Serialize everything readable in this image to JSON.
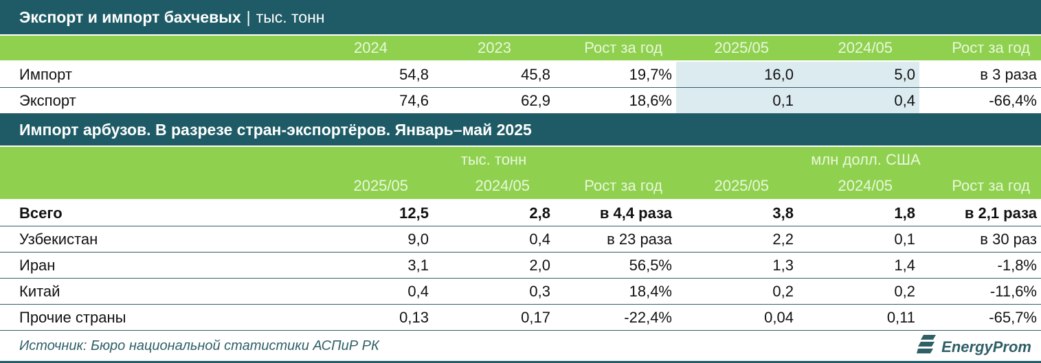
{
  "section1": {
    "title_bold": "Экспорт и импорт бахчевых",
    "title_sep": "|",
    "title_unit": "тыс. тонн",
    "headers": [
      "2024",
      "2023",
      "Рост за год",
      "2025/05",
      "2024/05",
      "Рост за год"
    ],
    "rows": [
      {
        "label": "Импорт",
        "values": [
          "54,8",
          "45,8",
          "19,7%",
          "16,0",
          "5,0",
          "в 3 раза"
        ]
      },
      {
        "label": "Экспорт",
        "values": [
          "74,6",
          "62,9",
          "18,6%",
          "0,1",
          "0,4",
          "-66,4%"
        ]
      }
    ]
  },
  "section2": {
    "title": "Импорт арбузов. В разрезе стран-экспортёров. Январь–май 2025",
    "unit_left": "тыс. тонн",
    "unit_right": "млн долл. США",
    "headers": [
      "2025/05",
      "2024/05",
      "Рост за год",
      "2025/05",
      "2024/05",
      "Рост за год"
    ],
    "rows": [
      {
        "label": "Всего",
        "values": [
          "12,5",
          "2,8",
          "в 4,4 раза",
          "3,8",
          "1,8",
          "в 2,1 раза"
        ]
      },
      {
        "label": "Узбекистан",
        "values": [
          "9,0",
          "0,4",
          "в 23 раза",
          "2,2",
          "0,1",
          "в 30 раз"
        ]
      },
      {
        "label": "Иран",
        "values": [
          "3,1",
          "2,0",
          "56,5%",
          "1,3",
          "1,4",
          "-1,8%"
        ]
      },
      {
        "label": "Китай",
        "values": [
          "0,4",
          "0,3",
          "18,4%",
          "0,2",
          "0,2",
          "-11,6%"
        ]
      },
      {
        "label": "Прочие страны",
        "values": [
          "0,13",
          "0,17",
          "-22,4%",
          "0,04",
          "0,11",
          "-65,7%"
        ]
      }
    ]
  },
  "footer": {
    "source": "Источник: Бюро национальной статистики АСПиР РК",
    "logo_text": "EnergyProm"
  },
  "colors": {
    "dark": "#1e5b66",
    "green": "#8fd14f",
    "highlight": "#dcebf0"
  },
  "icons": {
    "logo": "energyprom-logo-icon"
  }
}
